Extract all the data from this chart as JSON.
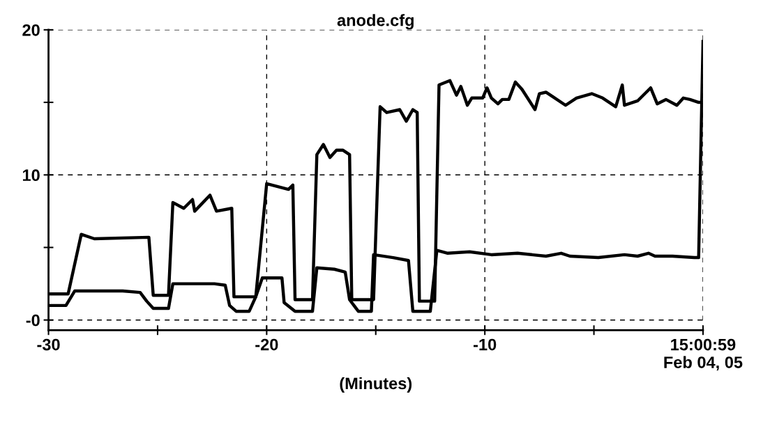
{
  "chart_data": {
    "type": "line",
    "title": "anode.cfg",
    "xlabel": "(Minutes)",
    "xlim": [
      -30,
      0
    ],
    "ylim": [
      -0.7,
      20
    ],
    "xticks": [
      -30,
      {
        "value": -25,
        "label": null
      },
      -20,
      {
        "value": -15,
        "label": null
      },
      -10,
      {
        "value": -5,
        "label": null
      },
      {
        "value": 0,
        "label": "15:00:59\nFeb 04, 05"
      }
    ],
    "yticks": [
      {
        "value": 0,
        "label": "-0"
      },
      {
        "value": 5,
        "label": null
      },
      10,
      {
        "value": 15,
        "label": null
      },
      20
    ],
    "grid": true,
    "line_style": "solid",
    "marker": "none",
    "series": [
      {
        "color": "#000000",
        "x": [
          -30.0,
          -29.1,
          -28.5,
          -27.9,
          -25.4,
          -25.2,
          -24.5,
          -24.3,
          -23.8,
          -23.4,
          -23.3,
          -22.6,
          -22.3,
          -21.6,
          -21.5,
          -20.5,
          -20.0,
          -19.0,
          -18.8,
          -18.7,
          -17.9,
          -17.7,
          -17.4,
          -17.1,
          -16.8,
          -16.5,
          -16.2,
          -16.1,
          -15.1,
          -14.8,
          -14.5,
          -13.9,
          -13.6,
          -13.3,
          -13.1,
          -13.0,
          -12.3,
          -12.1,
          -11.6,
          -11.3,
          -11.1,
          -10.8,
          -10.6,
          -10.1,
          -9.9,
          -9.7,
          -9.4,
          -9.2,
          -8.9,
          -8.6,
          -8.3,
          -7.7,
          -7.5,
          -7.2,
          -6.9,
          -6.3,
          -5.8,
          -5.1,
          -4.6,
          -4.0,
          -3.7,
          -3.6,
          -3.0,
          -2.4,
          -2.1,
          -1.7,
          -1.2,
          -0.9,
          -0.6,
          -0.2,
          -0.1
        ],
        "values": [
          1.8,
          1.8,
          5.9,
          5.6,
          5.7,
          1.7,
          1.7,
          8.1,
          7.7,
          8.3,
          7.5,
          8.6,
          7.5,
          7.7,
          1.6,
          1.6,
          9.4,
          9.0,
          9.3,
          1.4,
          1.4,
          11.4,
          12.1,
          11.2,
          11.7,
          11.7,
          11.4,
          1.4,
          1.4,
          14.7,
          14.3,
          14.5,
          13.7,
          14.5,
          14.3,
          1.3,
          1.3,
          16.2,
          16.5,
          15.5,
          16.1,
          14.8,
          15.3,
          15.3,
          16.0,
          15.3,
          14.9,
          15.2,
          15.2,
          16.4,
          15.9,
          14.5,
          15.6,
          15.7,
          15.4,
          14.8,
          15.3,
          15.6,
          15.3,
          14.7,
          16.2,
          14.8,
          15.1,
          16.0,
          14.9,
          15.2,
          14.8,
          15.3,
          15.2,
          15.0,
          15.0
        ]
      },
      {
        "color": "#000000",
        "x": [
          -30.0,
          -29.2,
          -28.8,
          -26.6,
          -25.8,
          -25.5,
          -25.2,
          -24.5,
          -24.3,
          -22.4,
          -21.9,
          -21.7,
          -21.4,
          -20.8,
          -20.5,
          -20.2,
          -19.3,
          -19.2,
          -18.7,
          -17.9,
          -17.7,
          -16.9,
          -16.4,
          -16.2,
          -15.8,
          -15.2,
          -15.1,
          -14.2,
          -13.5,
          -13.3,
          -12.5,
          -12.2,
          -11.7,
          -10.7,
          -9.7,
          -8.5,
          -7.2,
          -6.5,
          -6.1,
          -4.8,
          -3.6,
          -3.0,
          -2.5,
          -2.2,
          -1.4,
          -0.4,
          -0.2,
          -0.1,
          0.0
        ],
        "values": [
          1.0,
          1.0,
          2.0,
          2.0,
          1.9,
          1.3,
          0.8,
          0.8,
          2.5,
          2.5,
          2.4,
          1.0,
          0.6,
          0.6,
          1.6,
          2.9,
          2.9,
          1.2,
          0.6,
          0.6,
          3.6,
          3.5,
          3.3,
          1.4,
          0.6,
          0.6,
          4.5,
          4.3,
          4.1,
          0.6,
          0.6,
          4.8,
          4.6,
          4.7,
          4.5,
          4.6,
          4.4,
          4.6,
          4.4,
          4.3,
          4.5,
          4.4,
          4.6,
          4.4,
          4.4,
          4.3,
          4.3,
          11.8,
          19.2
        ]
      }
    ]
  }
}
